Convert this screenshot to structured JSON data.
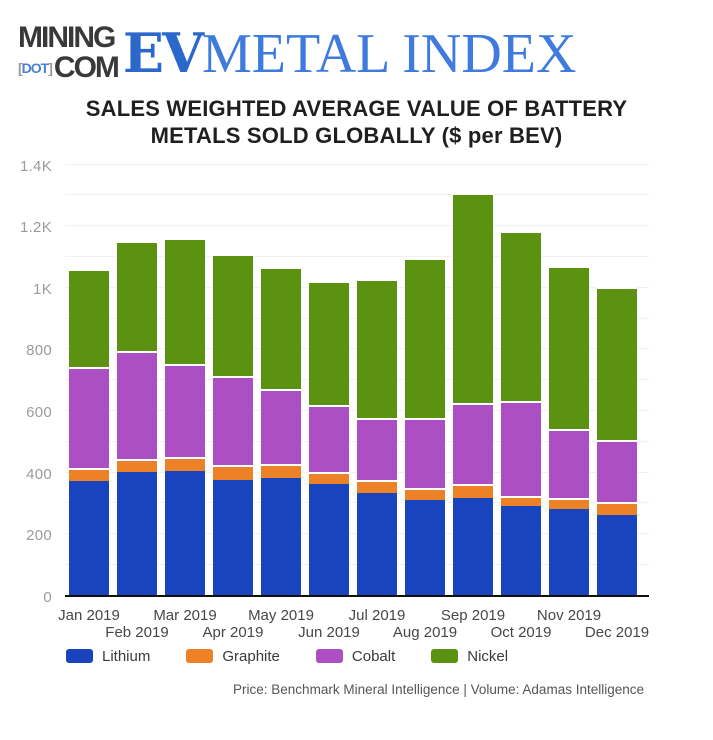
{
  "logo": {
    "mining": "MINING",
    "bracket_open": "[",
    "dot": "DOT",
    "bracket_close": "]",
    "com": "COM",
    "ev": "EV",
    "metal_index": "METAL INDEX"
  },
  "title": {
    "line1": "SALES WEIGHTED AVERAGE VALUE OF BATTERY",
    "line2": "METALS SOLD GLOBALLY ($ per BEV)"
  },
  "footer": "Price: Benchmark Mineral Intelligence | Volume: Adamas Intelligence",
  "colors": {
    "lithium": "#1a44bd",
    "graphite": "#ec8127",
    "cobalt": "#ab4fc2",
    "nickel": "#5c9212",
    "ev_blue": "#2c68cc",
    "metal_index_blue": "#3e7bdd",
    "logo_dark": "#39393b",
    "gridline": "#f1f1f1",
    "axis": "#0f0f0f"
  },
  "chart_data": {
    "type": "bar",
    "stacked": true,
    "title": "SALES WEIGHTED AVERAGE VALUE OF BATTERY METALS SOLD GLOBALLY ($ per BEV)",
    "xlabel": "",
    "ylabel": "$ per BEV",
    "categories": [
      "Jan 2019",
      "Feb 2019",
      "Mar 2019",
      "Apr 2019",
      "May 2019",
      "Jun 2019",
      "Jul 2019",
      "Aug 2019",
      "Sep 2019",
      "Oct 2019",
      "Nov 2019",
      "Dec 2019"
    ],
    "series": [
      {
        "name": "Lithium",
        "color": "#1a44bd",
        "values": [
          368,
          400,
          403,
          373,
          378,
          360,
          331,
          307,
          313,
          288,
          277,
          259
        ]
      },
      {
        "name": "Graphite",
        "color": "#ec8127",
        "values": [
          43,
          41,
          43,
          47,
          46,
          38,
          41,
          41,
          46,
          34,
          36,
          41
        ]
      },
      {
        "name": "Cobalt",
        "color": "#ab4fc2",
        "values": [
          328,
          351,
          304,
          290,
          244,
          217,
          201,
          227,
          265,
          306,
          225,
          203
        ]
      },
      {
        "name": "Nickel",
        "color": "#5c9212",
        "values": [
          319,
          358,
          407,
          395,
          395,
          405,
          452,
          520,
          681,
          554,
          528,
          497
        ]
      }
    ],
    "totals": [
      1058,
      1150,
      1157,
      1105,
      1063,
      1020,
      1025,
      1095,
      1305,
      1182,
      1066,
      1000
    ],
    "ylim": [
      0,
      1400
    ],
    "yticks": [
      {
        "value": 0,
        "label": "0"
      },
      {
        "value": 200,
        "label": "200"
      },
      {
        "value": 400,
        "label": "400"
      },
      {
        "value": 600,
        "label": "600"
      },
      {
        "value": 800,
        "label": "800"
      },
      {
        "value": 1000,
        "label": "1K"
      },
      {
        "value": 1200,
        "label": "1.2K"
      },
      {
        "value": 1400,
        "label": "1.4K"
      }
    ],
    "grid_step": 100,
    "grid": true,
    "legend_position": "bottom"
  }
}
